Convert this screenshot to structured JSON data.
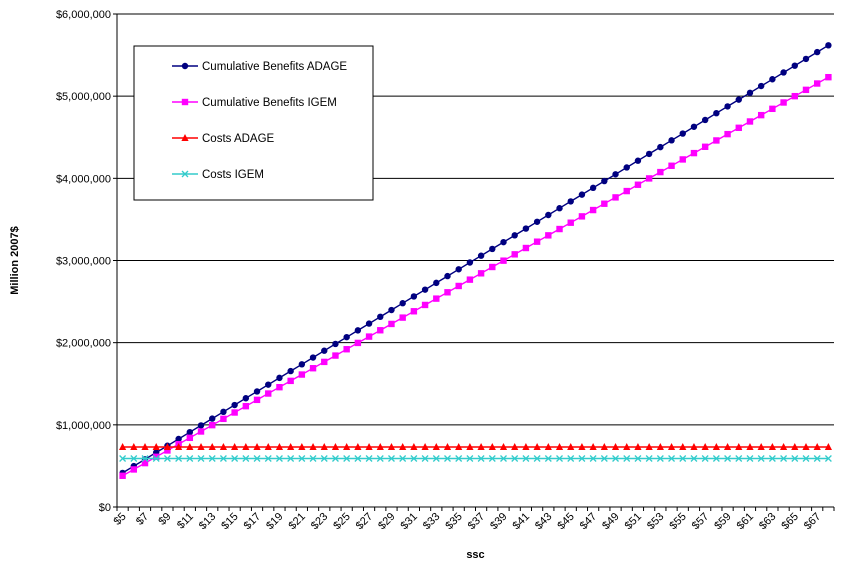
{
  "chart_data": {
    "type": "line",
    "title": "",
    "xlabel": "ssc",
    "ylabel": "Million 2007$",
    "x": [
      "$5",
      "$6",
      "$7",
      "$8",
      "$9",
      "$10",
      "$11",
      "$12",
      "$13",
      "$14",
      "$15",
      "$16",
      "$17",
      "$18",
      "$19",
      "$20",
      "$21",
      "$22",
      "$23",
      "$24",
      "$25",
      "$26",
      "$27",
      "$28",
      "$29",
      "$30",
      "$31",
      "$32",
      "$33",
      "$34",
      "$35",
      "$36",
      "$37",
      "$38",
      "$39",
      "$40",
      "$41",
      "$42",
      "$43",
      "$44",
      "$45",
      "$46",
      "$47",
      "$48",
      "$49",
      "$50",
      "$51",
      "$52",
      "$53",
      "$54",
      "$55",
      "$56",
      "$57",
      "$58",
      "$59",
      "$60",
      "$61",
      "$62",
      "$63",
      "$64",
      "$65",
      "$66",
      "$67",
      "$68"
    ],
    "x_tick_labels": [
      "$5",
      "$7",
      "$9",
      "$11",
      "$13",
      "$15",
      "$17",
      "$19",
      "$21",
      "$23",
      "$25",
      "$27",
      "$29",
      "$31",
      "$33",
      "$35",
      "$37",
      "$39",
      "$41",
      "$43",
      "$45",
      "$47",
      "$49",
      "$51",
      "$53",
      "$55",
      "$57",
      "$59",
      "$61",
      "$63",
      "$65",
      "$67"
    ],
    "ylim": [
      0,
      6000000
    ],
    "y_ticks": [
      0,
      1000000,
      2000000,
      3000000,
      4000000,
      5000000,
      6000000
    ],
    "y_tick_labels": [
      "$0",
      "$1,000,000",
      "$2,000,000",
      "$3,000,000",
      "$4,000,000",
      "$5,000,000",
      "$6,000,000"
    ],
    "grid": "horizontal",
    "legend": "top-left",
    "series": [
      {
        "name": "Cumulative Benefits ADAGE",
        "color": "#000080",
        "marker": "circle",
        "start": 415000,
        "step": 82600
      },
      {
        "name": "Cumulative Benefits IGEM",
        "color": "#ff00ff",
        "marker": "square",
        "start": 380000,
        "step": 77000
      },
      {
        "name": "Costs ADAGE",
        "color": "#ff0000",
        "marker": "triangle",
        "start": 730000,
        "step": 0
      },
      {
        "name": "Costs IGEM",
        "color": "#33cccc",
        "marker": "x",
        "start": 590000,
        "step": 0
      }
    ]
  }
}
